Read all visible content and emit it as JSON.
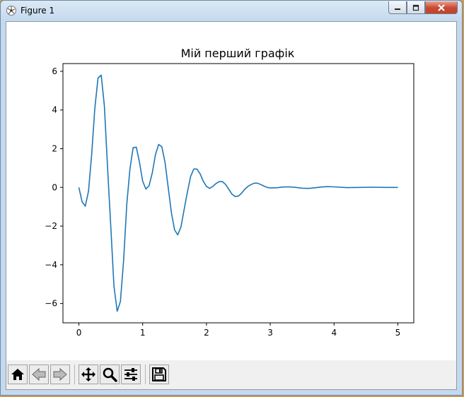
{
  "window": {
    "title": "Figure 1",
    "minimize_icon": "minimize-icon",
    "maximize_icon": "maximize-icon",
    "close_icon": "close-icon"
  },
  "toolbar": {
    "buttons": [
      {
        "name": "home-button",
        "icon": "home-icon"
      },
      {
        "name": "back-button",
        "icon": "back-arrow-icon"
      },
      {
        "name": "forward-button",
        "icon": "forward-arrow-icon"
      },
      {
        "name": "pan-button",
        "icon": "move-icon"
      },
      {
        "name": "zoom-button",
        "icon": "magnifier-icon"
      },
      {
        "name": "configure-subplots-button",
        "icon": "sliders-icon"
      },
      {
        "name": "save-button",
        "icon": "floppy-disk-icon"
      }
    ]
  },
  "chart_data": {
    "type": "line",
    "title": "Мій перший графік",
    "xlabel": "",
    "ylabel": "",
    "xlim": [
      -0.25,
      5.25
    ],
    "ylim": [
      -7,
      6.4
    ],
    "xticks": [
      0,
      1,
      2,
      3,
      4,
      5
    ],
    "yticks": [
      -6,
      -4,
      -2,
      0,
      2,
      4,
      6
    ],
    "line_color": "#1f77b4",
    "grid": false,
    "series": [
      {
        "x": [
          0,
          0.05,
          0.1,
          0.15,
          0.2,
          0.25,
          0.3,
          0.35,
          0.4,
          0.45,
          0.5,
          0.55,
          0.6,
          0.65,
          0.7,
          0.75,
          0.8,
          0.85,
          0.9,
          0.95,
          1.0,
          1.05,
          1.1,
          1.15,
          1.2,
          1.25,
          1.3,
          1.35,
          1.4,
          1.45,
          1.5,
          1.55,
          1.6,
          1.65,
          1.7,
          1.75,
          1.8,
          1.85,
          1.9,
          1.95,
          2.0,
          2.05,
          2.1,
          2.15,
          2.2,
          2.25,
          2.3,
          2.35,
          2.4,
          2.45,
          2.5,
          2.55,
          2.6,
          2.65,
          2.7,
          2.75,
          2.8,
          2.85,
          2.9,
          2.95,
          3.0,
          3.1,
          3.2,
          3.3,
          3.4,
          3.5,
          3.6,
          3.7,
          3.8,
          3.9,
          4.0,
          4.2,
          4.4,
          4.6,
          4.8,
          5.0
        ],
        "y": [
          0,
          -0.75,
          -0.97,
          -0.2,
          1.7,
          4.1,
          5.65,
          5.8,
          4.2,
          1.0,
          -2.0,
          -5.1,
          -6.4,
          -5.9,
          -3.8,
          -0.9,
          0.95,
          2.05,
          2.08,
          1.3,
          0.32,
          -0.08,
          0.08,
          0.75,
          1.7,
          2.22,
          2.1,
          1.3,
          0.0,
          -1.3,
          -2.2,
          -2.45,
          -2.05,
          -1.15,
          -0.25,
          0.55,
          0.95,
          0.95,
          0.7,
          0.32,
          0.05,
          -0.05,
          0.05,
          0.2,
          0.3,
          0.3,
          0.15,
          -0.1,
          -0.35,
          -0.47,
          -0.45,
          -0.3,
          -0.1,
          0.05,
          0.15,
          0.22,
          0.22,
          0.15,
          0.07,
          0.0,
          -0.03,
          -0.02,
          0.02,
          0.03,
          0.0,
          -0.04,
          -0.05,
          -0.02,
          0.02,
          0.04,
          0.03,
          -0.01,
          0.0,
          0.01,
          0.0,
          0.0
        ]
      }
    ]
  }
}
